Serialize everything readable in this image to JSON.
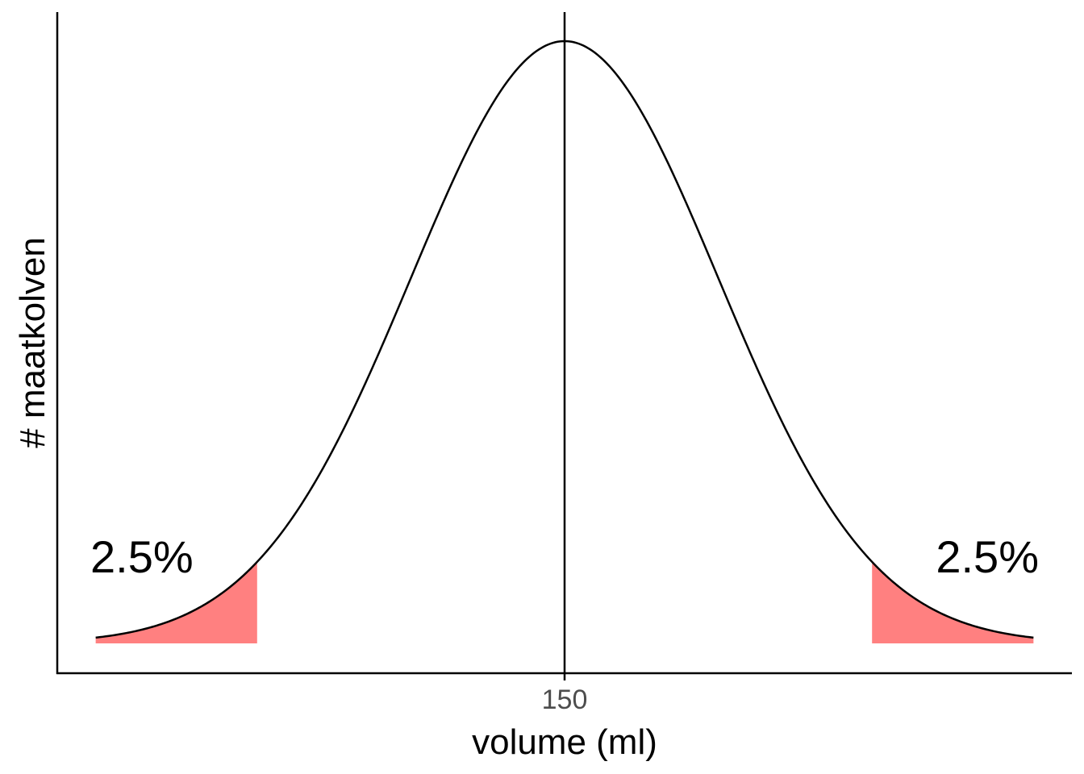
{
  "chart_data": {
    "type": "area",
    "title": "",
    "xlabel": "volume (ml)",
    "ylabel": "# maatkolven",
    "distribution": "normal",
    "mean": 150,
    "sd": 1,
    "xlim": [
      -3.3,
      3.3
    ],
    "x_range_plotted": [
      -3.05,
      3.05
    ],
    "tail_cutoffs": [
      -2,
      2
    ],
    "x_ticks": [
      {
        "value": 0,
        "label": "150"
      }
    ],
    "y_ticks": [],
    "grid": false,
    "legend": "none",
    "vline": {
      "x": 0
    },
    "annotations": [
      {
        "text": "2.5%",
        "x": -2.75,
        "side": "left"
      },
      {
        "text": "2.5%",
        "x": 2.75,
        "side": "right"
      }
    ],
    "colors": {
      "curve": "#000000",
      "tail_fill": "#ff8080",
      "axis": "#000000",
      "tick_label": "#4d4d4d"
    }
  }
}
